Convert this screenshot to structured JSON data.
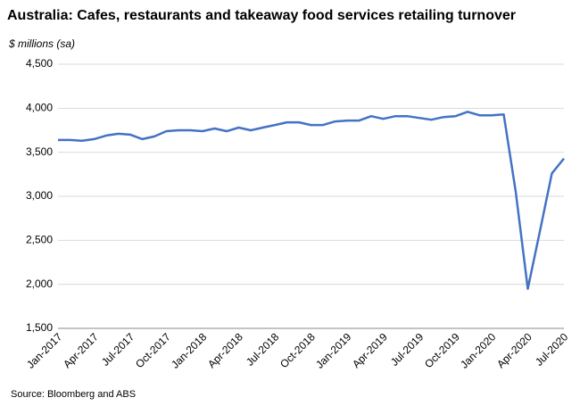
{
  "chart_data": {
    "type": "line",
    "title": "Australia: Cafes, restaurants and takeaway food services retailing turnover",
    "y_label": "$ millions (sa)",
    "source": "Source: Bloomberg and ABS",
    "categories": [
      "Jan-2017",
      null,
      null,
      "Apr-2017",
      null,
      null,
      "Jul-2017",
      null,
      null,
      "Oct-2017",
      null,
      null,
      "Jan-2018",
      null,
      null,
      "Apr-2018",
      null,
      null,
      "Jul-2018",
      null,
      null,
      "Oct-2018",
      null,
      null,
      "Jan-2019",
      null,
      null,
      "Apr-2019",
      null,
      null,
      "Jul-2019",
      null,
      null,
      "Oct-2019",
      null,
      null,
      "Jan-2020",
      null,
      null,
      "Apr-2020",
      null,
      null,
      "Jul-2020"
    ],
    "series": [
      {
        "name": "Turnover",
        "color": "#4472c4",
        "values": [
          3640,
          3640,
          3630,
          3650,
          3690,
          3710,
          3700,
          3650,
          3680,
          3740,
          3750,
          3750,
          3740,
          3770,
          3740,
          3780,
          3750,
          3780,
          3810,
          3840,
          3840,
          3810,
          3810,
          3850,
          3860,
          3860,
          3910,
          3880,
          3910,
          3910,
          3890,
          3870,
          3900,
          3910,
          3960,
          3920,
          3920,
          3930,
          3050,
          1950,
          2600,
          3260,
          3430
        ]
      }
    ],
    "ylim": [
      1500,
      4500
    ],
    "yticks": [
      {
        "value": 1500,
        "label": "1,500"
      },
      {
        "value": 2000,
        "label": "2,000"
      },
      {
        "value": 2500,
        "label": "2,500"
      },
      {
        "value": 3000,
        "label": "3,000"
      },
      {
        "value": 3500,
        "label": "3,500"
      },
      {
        "value": 4000,
        "label": "4,000"
      },
      {
        "value": 4500,
        "label": "4,500"
      }
    ],
    "grid": true
  }
}
